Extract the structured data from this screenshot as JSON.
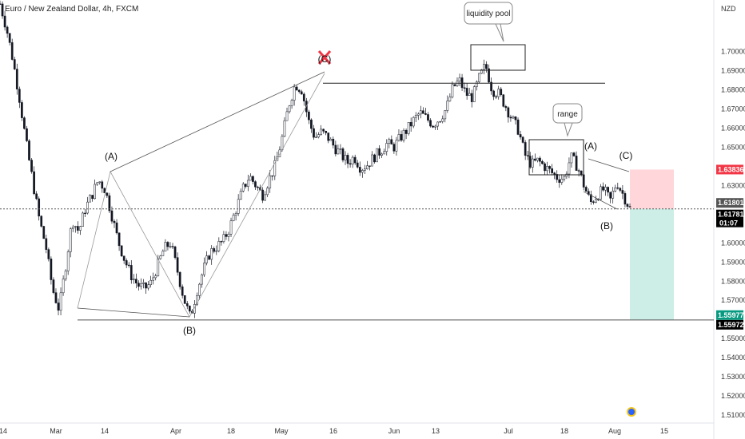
{
  "chart_data": {
    "type": "candlestick",
    "title": "Euro / New Zealand Dollar, 4h, FXCM",
    "currency": "NZD",
    "ylim": [
      1.505,
      1.722
    ],
    "y_ticks": [
      "1.70000",
      "1.69000",
      "1.68000",
      "1.67000",
      "1.66000",
      "1.65000",
      "1.63000",
      "1.60000",
      "1.59000",
      "1.58000",
      "1.57000",
      "1.55000",
      "1.54000",
      "1.53000",
      "1.52000",
      "1.51000"
    ],
    "x_ticks": [
      "14",
      "Mar",
      "14",
      "Apr",
      "18",
      "May",
      "16",
      "Jun",
      "13",
      "Jul",
      "18",
      "Aug",
      "15"
    ],
    "price_path": [
      1.725,
      1.712,
      1.695,
      1.675,
      1.652,
      1.632,
      1.612,
      1.598,
      1.576,
      1.565,
      1.588,
      1.612,
      1.606,
      1.618,
      1.625,
      1.633,
      1.628,
      1.615,
      1.601,
      1.591,
      1.583,
      1.578,
      1.576,
      1.579,
      1.588,
      1.597,
      1.6,
      1.586,
      1.571,
      1.561,
      1.575,
      1.586,
      1.595,
      1.598,
      1.601,
      1.608,
      1.618,
      1.628,
      1.635,
      1.63,
      1.625,
      1.633,
      1.641,
      1.655,
      1.672,
      1.683,
      1.68,
      1.664,
      1.655,
      1.658,
      1.655,
      1.65,
      1.646,
      1.642,
      1.645,
      1.639,
      1.641,
      1.645,
      1.648,
      1.652,
      1.65,
      1.655,
      1.659,
      1.664,
      1.668,
      1.665,
      1.662,
      1.665,
      1.67,
      1.681,
      1.685,
      1.678,
      1.676,
      1.686,
      1.693,
      1.68,
      1.678,
      1.672,
      1.665,
      1.659,
      1.646,
      1.641,
      1.643,
      1.64,
      1.637,
      1.634,
      1.634,
      1.645,
      1.64,
      1.63,
      1.621,
      1.625,
      1.628,
      1.622,
      1.632,
      1.625,
      1.618
    ],
    "annotations": {
      "wave_labels": [
        "(A)",
        "(B)",
        "(C)",
        "(A)",
        "(B)",
        "(C)"
      ],
      "callouts": [
        "liquidity pool",
        "range"
      ],
      "resistance_level": 1.6835,
      "support_level": 1.5597
    },
    "position": {
      "type": "short",
      "entry": 1.6178,
      "stop_loss": 1.63836,
      "take_profit": 1.55977
    },
    "price_labels": [
      {
        "value": 1.63836,
        "text": "1.63836",
        "color": "#f23645"
      },
      {
        "value": 1.61801,
        "text": "1.61801",
        "color": "#555555"
      },
      {
        "value": 1.61781,
        "text": "1.61781",
        "color": "#000000"
      },
      {
        "value": 1.55977,
        "text": "1.55977",
        "color": "#089981"
      },
      {
        "value": 1.55972,
        "text": "1.55972",
        "color": "#000000"
      }
    ],
    "countdown": "01:07",
    "grid": false,
    "colors": {
      "candle": "#131722",
      "stop_zone": "#ffd6da",
      "target_zone": "#cdeee6",
      "trendline": "#333333"
    }
  }
}
